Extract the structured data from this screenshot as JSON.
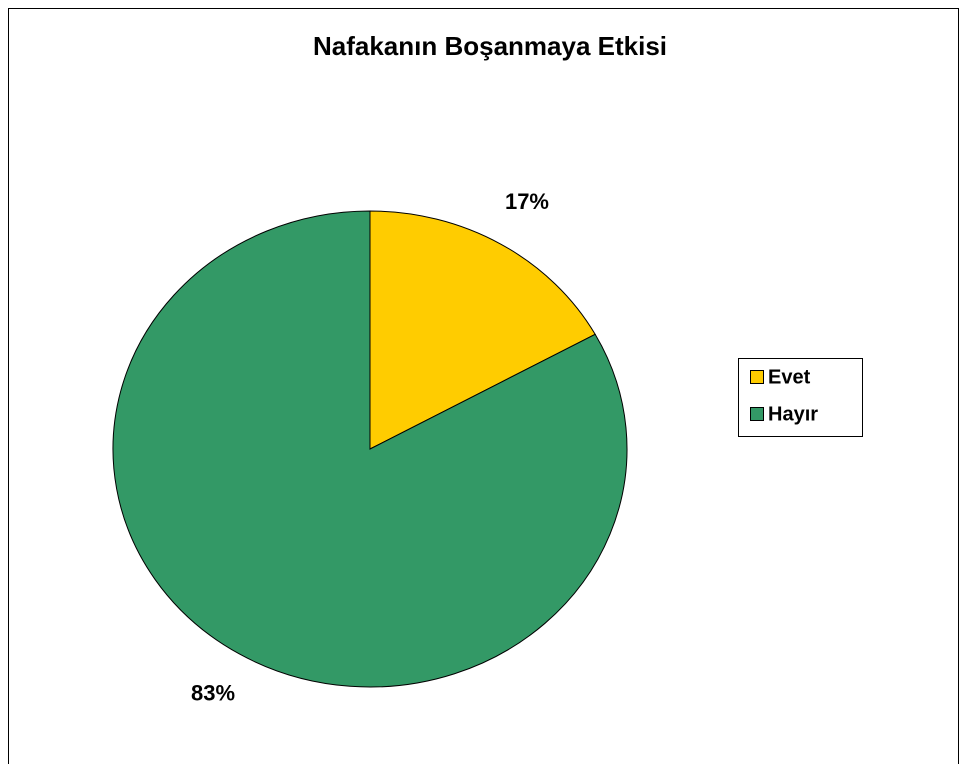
{
  "chart_data": {
    "type": "pie",
    "title": "Nafakanın Boşanmaya Etkisi",
    "categories": [
      "Evet",
      "Hayır"
    ],
    "values": [
      17,
      83
    ],
    "value_labels": [
      "17%",
      "83%"
    ],
    "colors": [
      "#ffcc00",
      "#339966"
    ],
    "legend": "right"
  }
}
